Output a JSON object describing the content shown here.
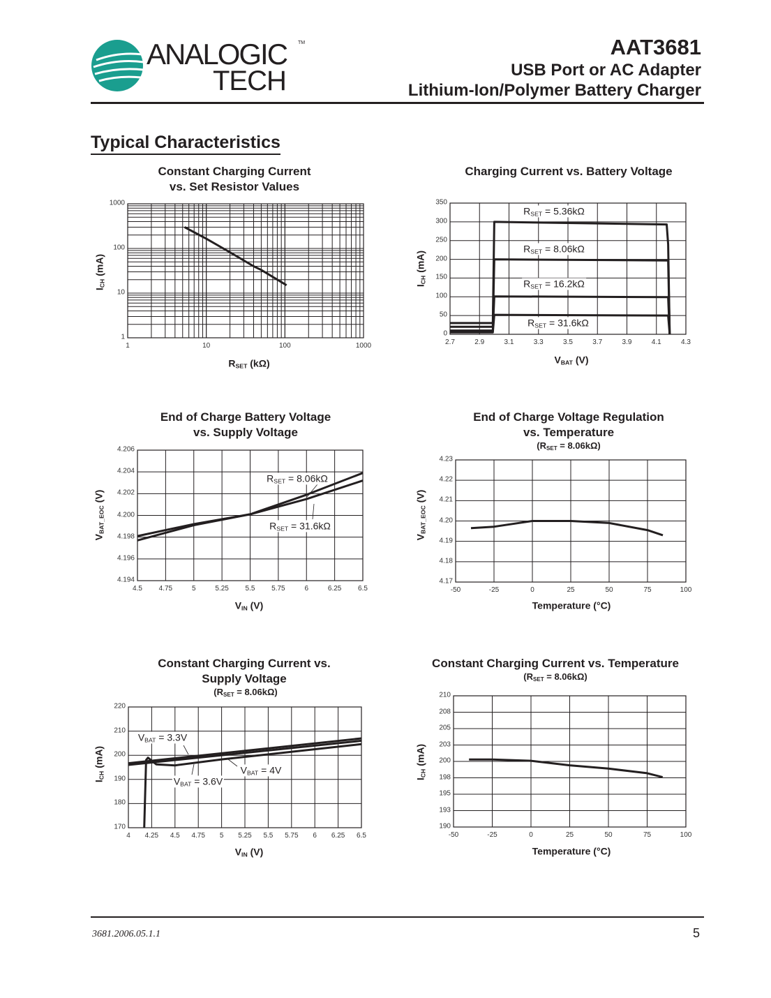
{
  "header": {
    "logo": {
      "word1": "ANALOGIC",
      "word2": "TECH",
      "tm": "TM"
    },
    "part_number": "AAT3681",
    "subtitle_line1": "USB Port or AC Adapter",
    "subtitle_line2": "Lithium-Ion/Polymer Battery Charger"
  },
  "section_title": "Typical Characteristics",
  "footer": {
    "doc_code": "3681.2006.05.1.1",
    "page_number": "5"
  },
  "colors": {
    "text": "#231f20",
    "logo_teal": "#1a9e8f",
    "line": "#231f20"
  },
  "chart_data": [
    {
      "type": "line",
      "title": [
        "Constant Charging Current",
        "vs. Set Resistor Values"
      ],
      "xlabel": {
        "base": "R",
        "sub": "SET",
        "tail": " (kΩ)"
      },
      "ylabel": {
        "base": "I",
        "sub": "CH",
        "tail": " (mA)"
      },
      "xscale": "log",
      "yscale": "log",
      "xlim": [
        1,
        1000
      ],
      "ylim": [
        1,
        1000
      ],
      "xticks": [
        {
          "v": 1,
          "label": "1"
        },
        {
          "v": 10,
          "label": "10"
        },
        {
          "v": 100,
          "label": "100"
        },
        {
          "v": 1000,
          "label": "1000"
        }
      ],
      "yticks": [
        {
          "v": 1,
          "label": "1"
        },
        {
          "v": 10,
          "label": "10"
        },
        {
          "v": 100,
          "label": "100"
        },
        {
          "v": 1000,
          "label": "1000"
        }
      ],
      "grid": true,
      "series": [
        {
          "name": "ICH",
          "points": [
            [
              5.3,
              300
            ],
            [
              10,
              165
            ],
            [
              20,
              82
            ],
            [
              40,
              40
            ],
            [
              50,
              33
            ],
            [
              105,
              15
            ]
          ]
        }
      ],
      "annotations": []
    },
    {
      "type": "line",
      "title": [
        "Charging Current vs. Battery Voltage"
      ],
      "xlabel": {
        "base": "V",
        "sub": "BAT",
        "tail": " (V)"
      },
      "ylabel": {
        "base": "I",
        "sub": "CH",
        "tail": " (mA)"
      },
      "xlim": [
        2.7,
        4.3
      ],
      "ylim": [
        0,
        350
      ],
      "xticks": [
        {
          "v": 2.7,
          "label": "2.7"
        },
        {
          "v": 2.9,
          "label": "2.9"
        },
        {
          "v": 3.1,
          "label": "3.1"
        },
        {
          "v": 3.3,
          "label": "3.3"
        },
        {
          "v": 3.5,
          "label": "3.5"
        },
        {
          "v": 3.7,
          "label": "3.7"
        },
        {
          "v": 3.9,
          "label": "3.9"
        },
        {
          "v": 4.1,
          "label": "4.1"
        },
        {
          "v": 4.3,
          "label": "4.3"
        }
      ],
      "yticks": [
        {
          "v": 0,
          "label": "0"
        },
        {
          "v": 50,
          "label": "50"
        },
        {
          "v": 100,
          "label": "100"
        },
        {
          "v": 150,
          "label": "150"
        },
        {
          "v": 200,
          "label": "200"
        },
        {
          "v": 250,
          "label": "250"
        },
        {
          "v": 300,
          "label": "300"
        },
        {
          "v": 350,
          "label": "350"
        }
      ],
      "grid": true,
      "series": [
        {
          "name": "RSET = 5.36kΩ",
          "points": [
            [
              2.7,
              30
            ],
            [
              2.99,
              30
            ],
            [
              3.0,
              300
            ],
            [
              4.17,
              293
            ],
            [
              4.18,
              240
            ],
            [
              4.19,
              0
            ]
          ]
        },
        {
          "name": "RSET = 8.06kΩ",
          "points": [
            [
              2.7,
              20
            ],
            [
              2.99,
              20
            ],
            [
              3.0,
              200
            ],
            [
              4.18,
              197
            ],
            [
              4.19,
              0
            ]
          ]
        },
        {
          "name": "RSET = 16.2kΩ",
          "points": [
            [
              2.7,
              10
            ],
            [
              2.99,
              10
            ],
            [
              3.0,
              101
            ],
            [
              4.18,
              99
            ],
            [
              4.19,
              0
            ]
          ]
        },
        {
          "name": "RSET = 31.6kΩ",
          "points": [
            [
              2.7,
              5
            ],
            [
              2.99,
              5
            ],
            [
              3.0,
              52
            ],
            [
              4.18,
              50
            ],
            [
              4.19,
              0
            ]
          ]
        }
      ],
      "annotations": [
        {
          "base": "R",
          "sub": "SET",
          "tail": " = 5.36kΩ"
        },
        {
          "base": "R",
          "sub": "SET",
          "tail": " = 8.06kΩ"
        },
        {
          "base": "R",
          "sub": "SET",
          "tail": " = 16.2kΩ"
        },
        {
          "base": "R",
          "sub": "SET",
          "tail": "  = 31.6kΩ"
        }
      ]
    },
    {
      "type": "line",
      "title": [
        "End of Charge Battery Voltage",
        "vs. Supply Voltage"
      ],
      "xlabel": {
        "base": "V",
        "sub": "IN",
        "tail": " (V)"
      },
      "ylabel": {
        "base": "V",
        "sub": "BAT_EOC",
        "tail": " (V)"
      },
      "xlim": [
        4.5,
        6.5
      ],
      "ylim": [
        4.194,
        4.206
      ],
      "xticks": [
        {
          "v": 4.5,
          "label": "4.5"
        },
        {
          "v": 4.75,
          "label": "4.75"
        },
        {
          "v": 5,
          "label": "5"
        },
        {
          "v": 5.25,
          "label": "5.25"
        },
        {
          "v": 5.5,
          "label": "5.5"
        },
        {
          "v": 5.75,
          "label": "5.75"
        },
        {
          "v": 6,
          "label": "6"
        },
        {
          "v": 6.25,
          "label": "6.25"
        },
        {
          "v": 6.5,
          "label": "6.5"
        }
      ],
      "yticks": [
        {
          "v": 4.194,
          "label": "4.194"
        },
        {
          "v": 4.196,
          "label": "4.196"
        },
        {
          "v": 4.198,
          "label": "4.198"
        },
        {
          "v": 4.2,
          "label": "4.200"
        },
        {
          "v": 4.202,
          "label": "4.202"
        },
        {
          "v": 4.204,
          "label": "4.204"
        },
        {
          "v": 4.206,
          "label": "4.206"
        }
      ],
      "grid": true,
      "series": [
        {
          "name": "RSET = 8.06kΩ",
          "points": [
            [
              4.5,
              4.1977
            ],
            [
              5,
              4.1991
            ],
            [
              5.5,
              4.2001
            ],
            [
              6,
              4.2019
            ],
            [
              6.5,
              4.2039
            ]
          ]
        },
        {
          "name": "RSET = 31.6kΩ",
          "points": [
            [
              4.5,
              4.1981
            ],
            [
              5,
              4.1992
            ],
            [
              5.5,
              4.2001
            ],
            [
              6,
              4.2015
            ],
            [
              6.5,
              4.2032
            ]
          ]
        }
      ],
      "annotations": [
        {
          "base": "R",
          "sub": "SET",
          "tail": " = 8.06kΩ"
        },
        {
          "base": "R",
          "sub": "SET",
          "tail": "  = 31.6kΩ"
        }
      ]
    },
    {
      "type": "line",
      "title": [
        "End of Charge Voltage Regulation",
        "vs. Temperature"
      ],
      "subtitle": {
        "base": "(R",
        "sub": "SET",
        "tail": " = 8.06kΩ)"
      },
      "xlabel": {
        "base": "Temperature (°C)",
        "sub": "",
        "tail": ""
      },
      "ylabel": {
        "base": "V",
        "sub": "BAT_EOC",
        "tail": " (V)"
      },
      "xlim": [
        -50,
        100
      ],
      "ylim": [
        4.17,
        4.23
      ],
      "xticks": [
        {
          "v": -50,
          "label": "-50"
        },
        {
          "v": -25,
          "label": "-25"
        },
        {
          "v": 0,
          "label": "0"
        },
        {
          "v": 25,
          "label": "25"
        },
        {
          "v": 50,
          "label": "50"
        },
        {
          "v": 75,
          "label": "75"
        },
        {
          "v": 100,
          "label": "100"
        }
      ],
      "yticks": [
        {
          "v": 4.17,
          "label": "4.17"
        },
        {
          "v": 4.18,
          "label": "4.18"
        },
        {
          "v": 4.19,
          "label": "4.19"
        },
        {
          "v": 4.2,
          "label": "4.20"
        },
        {
          "v": 4.21,
          "label": "4.21"
        },
        {
          "v": 4.22,
          "label": "4.22"
        },
        {
          "v": 4.23,
          "label": "4.23"
        }
      ],
      "grid": true,
      "series": [
        {
          "name": "VBAT_EOC",
          "points": [
            [
              -40,
              4.1965
            ],
            [
              -25,
              4.1972
            ],
            [
              0,
              4.2
            ],
            [
              25,
              4.2
            ],
            [
              50,
              4.199
            ],
            [
              75,
              4.1955
            ],
            [
              85,
              4.193
            ]
          ]
        }
      ],
      "annotations": []
    },
    {
      "type": "line",
      "title": [
        "Constant Charging Current vs.",
        "Supply Voltage"
      ],
      "subtitle": {
        "base": "(R",
        "sub": "SET",
        "tail": " = 8.06kΩ)"
      },
      "xlabel": {
        "base": "V",
        "sub": "IN",
        "tail": " (V)"
      },
      "ylabel": {
        "base": "I",
        "sub": "CH",
        "tail": " (mA)"
      },
      "xlim": [
        4,
        6.5
      ],
      "ylim": [
        170,
        220
      ],
      "xticks": [
        {
          "v": 4,
          "label": "4"
        },
        {
          "v": 4.25,
          "label": "4.25"
        },
        {
          "v": 4.5,
          "label": "4.5"
        },
        {
          "v": 4.75,
          "label": "4.75"
        },
        {
          "v": 5,
          "label": "5"
        },
        {
          "v": 5.25,
          "label": "5.25"
        },
        {
          "v": 5.5,
          "label": "5.5"
        },
        {
          "v": 5.75,
          "label": "5.75"
        },
        {
          "v": 6,
          "label": "6"
        },
        {
          "v": 6.25,
          "label": "6.25"
        },
        {
          "v": 6.5,
          "label": "6.5"
        }
      ],
      "yticks": [
        {
          "v": 170,
          "label": "170"
        },
        {
          "v": 180,
          "label": "180"
        },
        {
          "v": 190,
          "label": "190"
        },
        {
          "v": 200,
          "label": "200"
        },
        {
          "v": 210,
          "label": "210"
        },
        {
          "v": 220,
          "label": "220"
        }
      ],
      "grid": true,
      "series": [
        {
          "name": "VBAT = 3.3V",
          "points": [
            [
              4,
              196.7
            ],
            [
              6.5,
              207
            ]
          ]
        },
        {
          "name": "VBAT = 3.6V",
          "points": [
            [
              4,
              196
            ],
            [
              6.5,
              206
            ]
          ]
        },
        {
          "name": "VBAT = 4V",
          "points": [
            [
              4.17,
              170
            ],
            [
              4.19,
              198
            ],
            [
              4.21,
              199
            ],
            [
              4.3,
              196.2
            ],
            [
              4.5,
              195.8
            ],
            [
              5,
              198.3
            ],
            [
              6.5,
              204.6
            ]
          ]
        }
      ],
      "annotations": [
        {
          "base": "V",
          "sub": "BAT",
          "tail": " = 3.3V"
        },
        {
          "base": "V",
          "sub": "BAT",
          "tail": " = 4V"
        },
        {
          "base": "V",
          "sub": "BAT",
          "tail": " = 3.6V"
        }
      ]
    },
    {
      "type": "line",
      "title": [
        "Constant Charging Current vs. Temperature"
      ],
      "subtitle": {
        "base": "(R",
        "sub": "SET",
        "tail": " = 8.06kΩ)"
      },
      "xlabel": {
        "base": "Temperature (°C)",
        "sub": "",
        "tail": ""
      },
      "ylabel": {
        "base": "I",
        "sub": "CH",
        "tail": " (mA)"
      },
      "xlim": [
        -50,
        100
      ],
      "ylim": [
        190,
        210
      ],
      "xticks": [
        {
          "v": -50,
          "label": "-50"
        },
        {
          "v": -25,
          "label": "-25"
        },
        {
          "v": 0,
          "label": "0"
        },
        {
          "v": 25,
          "label": "25"
        },
        {
          "v": 50,
          "label": "50"
        },
        {
          "v": 75,
          "label": "75"
        },
        {
          "v": 100,
          "label": "100"
        }
      ],
      "yticks": [
        {
          "v": 190,
          "label": "190"
        },
        {
          "v": 192.5,
          "label": "193"
        },
        {
          "v": 195,
          "label": "195"
        },
        {
          "v": 197.5,
          "label": "198"
        },
        {
          "v": 200,
          "label": "200"
        },
        {
          "v": 202.5,
          "label": "203"
        },
        {
          "v": 205,
          "label": "205"
        },
        {
          "v": 207.5,
          "label": "208"
        },
        {
          "v": 210,
          "label": "210"
        }
      ],
      "grid": true,
      "series": [
        {
          "name": "ICH",
          "points": [
            [
              -40,
              200.3
            ],
            [
              -25,
              200.3
            ],
            [
              0,
              200.1
            ],
            [
              25,
              199.4
            ],
            [
              50,
              198.9
            ],
            [
              75,
              198.2
            ],
            [
              85,
              197.6
            ]
          ]
        }
      ],
      "annotations": []
    }
  ]
}
